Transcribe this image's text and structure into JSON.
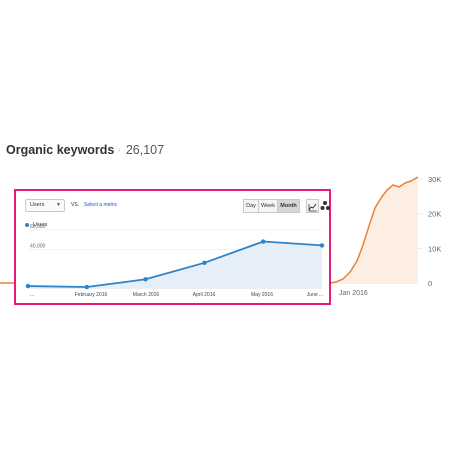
{
  "background_chart": {
    "title": "Organic keywords",
    "info_icon": "info-icon",
    "total": "26,107",
    "y_ticks": [
      {
        "label": "30K",
        "value": 30000
      },
      {
        "label": "20K",
        "value": 20000
      },
      {
        "label": "10K",
        "value": 10000
      },
      {
        "label": "0",
        "value": 0
      }
    ],
    "x_label": "Jan 2016",
    "line_color": "#e8823a",
    "fill_color": "#fdeee3"
  },
  "ga_panel": {
    "border_color": "#e6197d",
    "metric_select": "Users",
    "vs_label": "VS.",
    "select_metric_link": "Select a metric",
    "period_buttons": [
      "Day",
      "Week",
      "Month"
    ],
    "active_period": "Month",
    "icons": [
      "line-chart-icon",
      "motion-chart-icon"
    ],
    "legend": "Users",
    "series_color": "#3083c6",
    "area_color": "#e6eef8"
  },
  "chart_data": [
    {
      "type": "line",
      "title": "",
      "xlabel": "",
      "ylabel": "",
      "x": [
        "...",
        "February 2016",
        "March 2016",
        "April 2016",
        "May 2016",
        "June ..."
      ],
      "series": [
        {
          "name": "Users",
          "values": [
            2000,
            1000,
            9000,
            26000,
            48000,
            44000
          ]
        }
      ],
      "y_tick_labels": [
        "60,000",
        "40,000"
      ],
      "ylim": [
        0,
        63000
      ]
    }
  ]
}
